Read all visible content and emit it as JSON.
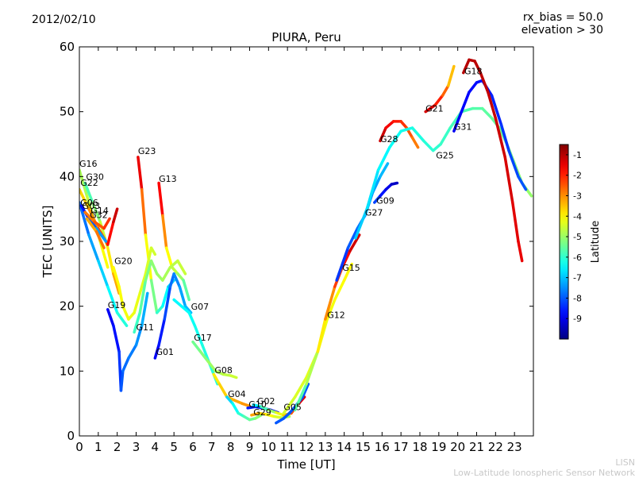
{
  "header": {
    "date": "2012/02/10",
    "rx_bias": "rx_bias = 50.0",
    "elevation": "elevation > 30"
  },
  "footer": {
    "short": "LISN",
    "full": "Low-Latitude Ionospheric Sensor Network"
  },
  "chart_data": {
    "type": "scatter",
    "title": "PIURA, Peru",
    "xlabel": "Time [UT]",
    "ylabel": "TEC [UNITS]",
    "xlim": [
      0,
      24
    ],
    "ylim": [
      0,
      60
    ],
    "x_ticks": [
      "0",
      "1",
      "2",
      "3",
      "4",
      "5",
      "6",
      "7",
      "8",
      "9",
      "10",
      "11",
      "12",
      "13",
      "14",
      "15",
      "16",
      "17",
      "18",
      "19",
      "20",
      "21",
      "22",
      "23"
    ],
    "y_ticks": [
      "0",
      "10",
      "20",
      "30",
      "40",
      "50",
      "60"
    ],
    "colorbar": {
      "label": "Latitude",
      "range": [
        -10,
        -0.5
      ],
      "ticks": [
        "-1",
        "-2",
        "-3",
        "-4",
        "-5",
        "-6",
        "-7",
        "-8",
        "-9"
      ]
    },
    "satellite_labels": [
      {
        "name": "G16",
        "x": 0.0,
        "y": 41.5
      },
      {
        "name": "G30",
        "x": 0.35,
        "y": 39.5
      },
      {
        "name": "G22",
        "x": 0.05,
        "y": 38.6
      },
      {
        "name": "G06",
        "x": 0.05,
        "y": 35.5
      },
      {
        "name": "G03",
        "x": 0.15,
        "y": 35.0
      },
      {
        "name": "G14",
        "x": 0.6,
        "y": 34.3
      },
      {
        "name": "G32",
        "x": 0.55,
        "y": 33.6
      },
      {
        "name": "G23",
        "x": 3.1,
        "y": 43.5
      },
      {
        "name": "G13",
        "x": 4.2,
        "y": 39.2
      },
      {
        "name": "G20",
        "x": 1.85,
        "y": 26.5
      },
      {
        "name": "G19",
        "x": 1.5,
        "y": 19.7
      },
      {
        "name": "G11",
        "x": 3.0,
        "y": 16.3
      },
      {
        "name": "G01",
        "x": 4.05,
        "y": 12.5
      },
      {
        "name": "G07",
        "x": 5.9,
        "y": 19.5
      },
      {
        "name": "G17",
        "x": 6.05,
        "y": 14.7
      },
      {
        "name": "G08",
        "x": 7.15,
        "y": 9.7
      },
      {
        "name": "G04",
        "x": 7.85,
        "y": 6.0
      },
      {
        "name": "G10",
        "x": 8.95,
        "y": 4.4
      },
      {
        "name": "G02",
        "x": 9.4,
        "y": 4.9
      },
      {
        "name": "G29",
        "x": 9.2,
        "y": 3.2
      },
      {
        "name": "G05",
        "x": 10.8,
        "y": 4.0
      },
      {
        "name": "G12",
        "x": 13.1,
        "y": 18.2
      },
      {
        "name": "G15",
        "x": 13.9,
        "y": 25.5
      },
      {
        "name": "G27",
        "x": 15.1,
        "y": 34.0
      },
      {
        "name": "G09",
        "x": 15.7,
        "y": 35.8
      },
      {
        "name": "G28",
        "x": 15.9,
        "y": 45.3
      },
      {
        "name": "G21",
        "x": 18.3,
        "y": 50.0
      },
      {
        "name": "G25",
        "x": 18.85,
        "y": 42.8
      },
      {
        "name": "G31",
        "x": 19.8,
        "y": 47.2
      },
      {
        "name": "G18",
        "x": 20.35,
        "y": 55.8
      }
    ],
    "series": [
      {
        "name": "G16",
        "points": [
          [
            0,
            41
          ],
          [
            0.4,
            37
          ],
          [
            0.8,
            33
          ],
          [
            1.2,
            29
          ],
          [
            1.5,
            26
          ]
        ],
        "lat_start": -5,
        "lat_end": -4
      },
      {
        "name": "G30",
        "points": [
          [
            0.3,
            39
          ],
          [
            0.7,
            36
          ],
          [
            1.1,
            33
          ],
          [
            1.5,
            29
          ],
          [
            1.8,
            25
          ],
          [
            2.1,
            22
          ]
        ],
        "lat_start": -6,
        "lat_end": -3
      },
      {
        "name": "G22",
        "points": [
          [
            0,
            38
          ],
          [
            0.5,
            35
          ],
          [
            1.0,
            32
          ],
          [
            1.5,
            29.5
          ],
          [
            1.8,
            33
          ],
          [
            2.0,
            35
          ]
        ],
        "lat_start": -4,
        "lat_end": -1
      },
      {
        "name": "G06",
        "points": [
          [
            0,
            36
          ],
          [
            0.5,
            31
          ],
          [
            1.0,
            27
          ],
          [
            1.5,
            23
          ],
          [
            2.0,
            19
          ],
          [
            2.5,
            17
          ]
        ],
        "lat_start": -8,
        "lat_end": -6
      },
      {
        "name": "G03",
        "points": [
          [
            0.1,
            35.5
          ],
          [
            0.5,
            33.5
          ],
          [
            0.9,
            32
          ],
          [
            1.4,
            30
          ]
        ],
        "lat_start": -9,
        "lat_end": -7
      },
      {
        "name": "G14",
        "points": [
          [
            0.3,
            34.5
          ],
          [
            0.8,
            33
          ],
          [
            1.3,
            32
          ],
          [
            1.6,
            33.5
          ]
        ],
        "lat_start": -3,
        "lat_end": -2
      },
      {
        "name": "G32",
        "points": [
          [
            0.4,
            33.5
          ],
          [
            0.9,
            31.5
          ],
          [
            1.3,
            29
          ]
        ],
        "lat_start": -3.5,
        "lat_end": -2.5
      },
      {
        "name": "G23",
        "points": [
          [
            3.1,
            43
          ],
          [
            3.3,
            38
          ],
          [
            3.5,
            31
          ],
          [
            3.8,
            24
          ],
          [
            4.1,
            19
          ],
          [
            4.4,
            20
          ],
          [
            4.7,
            23
          ],
          [
            5.0,
            24
          ]
        ],
        "lat_start": -1,
        "lat_end": -7
      },
      {
        "name": "G13",
        "points": [
          [
            4.2,
            39
          ],
          [
            4.4,
            34
          ],
          [
            4.6,
            29
          ],
          [
            4.9,
            26
          ],
          [
            5.2,
            25
          ],
          [
            5.5,
            24
          ],
          [
            5.8,
            21
          ]
        ],
        "lat_start": -1,
        "lat_end": -6
      },
      {
        "name": "G20",
        "points": [
          [
            1.8,
            26
          ],
          [
            2.1,
            23
          ],
          [
            2.3,
            20
          ],
          [
            2.6,
            18
          ],
          [
            2.9,
            19
          ],
          [
            3.2,
            22
          ],
          [
            3.5,
            25
          ],
          [
            3.8,
            29
          ],
          [
            4.0,
            28
          ]
        ],
        "lat_start": -4,
        "lat_end": -4.5
      },
      {
        "name": "G19",
        "points": [
          [
            1.5,
            19.5
          ],
          [
            1.8,
            17
          ],
          [
            2.1,
            13
          ],
          [
            2.2,
            7
          ],
          [
            2.3,
            10
          ],
          [
            2.6,
            12
          ],
          [
            3.0,
            14
          ],
          [
            3.3,
            17
          ],
          [
            3.6,
            22
          ]
        ],
        "lat_start": -9,
        "lat_end": -7
      },
      {
        "name": "G11",
        "points": [
          [
            2.9,
            16
          ],
          [
            3.2,
            19
          ],
          [
            3.5,
            24
          ],
          [
            3.8,
            27
          ],
          [
            4.1,
            25
          ],
          [
            4.4,
            24
          ],
          [
            4.8,
            26
          ],
          [
            5.2,
            27
          ],
          [
            5.6,
            25
          ]
        ],
        "lat_start": -6,
        "lat_end": -4.5
      },
      {
        "name": "G01",
        "points": [
          [
            4.0,
            12
          ],
          [
            4.2,
            14
          ],
          [
            4.5,
            18
          ],
          [
            4.8,
            23
          ],
          [
            5.0,
            25
          ],
          [
            5.3,
            23
          ],
          [
            5.6,
            20
          ],
          [
            5.9,
            19
          ]
        ],
        "lat_start": -9,
        "lat_end": -7
      },
      {
        "name": "G07",
        "points": [
          [
            5.0,
            21
          ],
          [
            5.4,
            20
          ],
          [
            5.8,
            19
          ],
          [
            6.1,
            17
          ],
          [
            6.5,
            14
          ],
          [
            6.9,
            11
          ],
          [
            7.3,
            8
          ]
        ],
        "lat_start": -6.5,
        "lat_end": -6
      },
      {
        "name": "G17",
        "points": [
          [
            6.0,
            14.5
          ],
          [
            6.4,
            13
          ],
          [
            6.8,
            11.5
          ],
          [
            7.2,
            10
          ],
          [
            7.6,
            9.5
          ],
          [
            8.0,
            9.3
          ],
          [
            8.3,
            9
          ]
        ],
        "lat_start": -5.5,
        "lat_end": -4.5
      },
      {
        "name": "G08",
        "points": [
          [
            7.1,
            9.5
          ],
          [
            7.4,
            8
          ],
          [
            7.8,
            6
          ],
          [
            8.2,
            5.5
          ],
          [
            8.6,
            5
          ],
          [
            9.0,
            4.6
          ]
        ],
        "lat_start": -4,
        "lat_end": -3
      },
      {
        "name": "G04",
        "points": [
          [
            7.8,
            6
          ],
          [
            8.1,
            5
          ],
          [
            8.4,
            3.5
          ],
          [
            8.7,
            3
          ],
          [
            9.0,
            2.5
          ],
          [
            9.3,
            2.7
          ],
          [
            9.6,
            3.2
          ]
        ],
        "lat_start": -7,
        "lat_end": -5
      },
      {
        "name": "G10",
        "points": [
          [
            8.9,
            4.3
          ],
          [
            9.3,
            4.5
          ],
          [
            9.7,
            4.3
          ],
          [
            10.1,
            4
          ],
          [
            10.5,
            3.6
          ]
        ],
        "lat_start": -8.5,
        "lat_end": -9
      },
      {
        "name": "G02",
        "points": [
          [
            9.2,
            4.8
          ],
          [
            9.6,
            4.5
          ],
          [
            10.0,
            4
          ],
          [
            10.4,
            3.6
          ],
          [
            10.8,
            3.2
          ],
          [
            11.2,
            3.5
          ],
          [
            11.6,
            5
          ],
          [
            11.9,
            6
          ]
        ],
        "lat_start": -7,
        "lat_end": -1
      },
      {
        "name": "G29",
        "points": [
          [
            9.1,
            3.2
          ],
          [
            9.5,
            3.5
          ],
          [
            9.9,
            3.3
          ],
          [
            10.3,
            3
          ],
          [
            10.7,
            2.8
          ],
          [
            11.1,
            3
          ]
        ],
        "lat_start": -3,
        "lat_end": -5
      },
      {
        "name": "G05",
        "points": [
          [
            10.4,
            2
          ],
          [
            10.8,
            2.7
          ],
          [
            11.1,
            3.5
          ],
          [
            11.4,
            4.5
          ],
          [
            11.8,
            6
          ],
          [
            12.1,
            8
          ]
        ],
        "lat_start": -8,
        "lat_end": -8
      },
      {
        "name": "G12",
        "points": [
          [
            10.8,
            3.5
          ],
          [
            11.4,
            6
          ],
          [
            12.0,
            9
          ],
          [
            12.6,
            13
          ],
          [
            13.1,
            18
          ],
          [
            13.5,
            21
          ],
          [
            14.0,
            24
          ],
          [
            14.4,
            26.5
          ]
        ],
        "lat_start": -4.5,
        "lat_end": -4
      },
      {
        "name": "G15",
        "points": [
          [
            11.4,
            4
          ],
          [
            12.0,
            8
          ],
          [
            12.6,
            13
          ],
          [
            13.0,
            18
          ],
          [
            13.5,
            23
          ],
          [
            13.9,
            26
          ],
          [
            14.3,
            28.5
          ],
          [
            14.8,
            31
          ]
        ],
        "lat_start": -6,
        "lat_end": -1
      },
      {
        "name": "G27",
        "points": [
          [
            13.6,
            24
          ],
          [
            14.2,
            29
          ],
          [
            14.7,
            32
          ],
          [
            15.1,
            34
          ],
          [
            15.5,
            37.5
          ],
          [
            15.9,
            40
          ],
          [
            16.3,
            42
          ]
        ],
        "lat_start": -8.5,
        "lat_end": -7
      },
      {
        "name": "G09",
        "points": [
          [
            15.6,
            36
          ],
          [
            15.9,
            37
          ],
          [
            16.2,
            38
          ],
          [
            16.5,
            38.8
          ],
          [
            16.8,
            39
          ]
        ],
        "lat_start": -8,
        "lat_end": -9.5
      },
      {
        "name": "G28",
        "points": [
          [
            15.9,
            45.5
          ],
          [
            16.2,
            47.5
          ],
          [
            16.6,
            48.5
          ],
          [
            17.0,
            48.5
          ],
          [
            17.3,
            47.5
          ],
          [
            17.6,
            46
          ],
          [
            17.9,
            44.5
          ]
        ],
        "lat_start": -1,
        "lat_end": -3
      },
      {
        "name": "G21",
        "points": [
          [
            18.3,
            50
          ],
          [
            18.8,
            51
          ],
          [
            19.2,
            52.5
          ],
          [
            19.5,
            54
          ],
          [
            19.8,
            57
          ]
        ],
        "lat_start": -1,
        "lat_end": -4
      },
      {
        "name": "G25",
        "points": [
          [
            14.6,
            30.5
          ],
          [
            15.2,
            35
          ],
          [
            15.8,
            41
          ],
          [
            16.4,
            44.5
          ],
          [
            17.0,
            47
          ],
          [
            17.6,
            47.5
          ],
          [
            18.2,
            45.5
          ],
          [
            18.7,
            44
          ],
          [
            19.1,
            45
          ],
          [
            19.6,
            47.5
          ],
          [
            20.2,
            50
          ],
          [
            20.8,
            50.5
          ],
          [
            21.3,
            50.5
          ],
          [
            21.8,
            49
          ],
          [
            22.2,
            47.5
          ],
          [
            22.6,
            45
          ],
          [
            23.0,
            42
          ],
          [
            23.4,
            39
          ],
          [
            23.9,
            37
          ]
        ],
        "lat_start": -7,
        "lat_end": -5
      },
      {
        "name": "G31",
        "points": [
          [
            19.8,
            47
          ],
          [
            20.2,
            50
          ],
          [
            20.6,
            53
          ],
          [
            21.0,
            54.5
          ],
          [
            21.3,
            54.8
          ],
          [
            21.8,
            52.5
          ],
          [
            22.3,
            48
          ],
          [
            22.7,
            44
          ],
          [
            23.2,
            40
          ],
          [
            23.6,
            38
          ]
        ],
        "lat_start": -9,
        "lat_end": -8
      },
      {
        "name": "G18",
        "points": [
          [
            20.3,
            56
          ],
          [
            20.6,
            58
          ],
          [
            20.9,
            57.8
          ],
          [
            21.2,
            56
          ],
          [
            21.6,
            53
          ],
          [
            22.0,
            49
          ],
          [
            22.5,
            43
          ],
          [
            22.9,
            36
          ],
          [
            23.2,
            30
          ],
          [
            23.4,
            27
          ]
        ],
        "lat_start": -1,
        "lat_end": -1.5
      }
    ]
  }
}
